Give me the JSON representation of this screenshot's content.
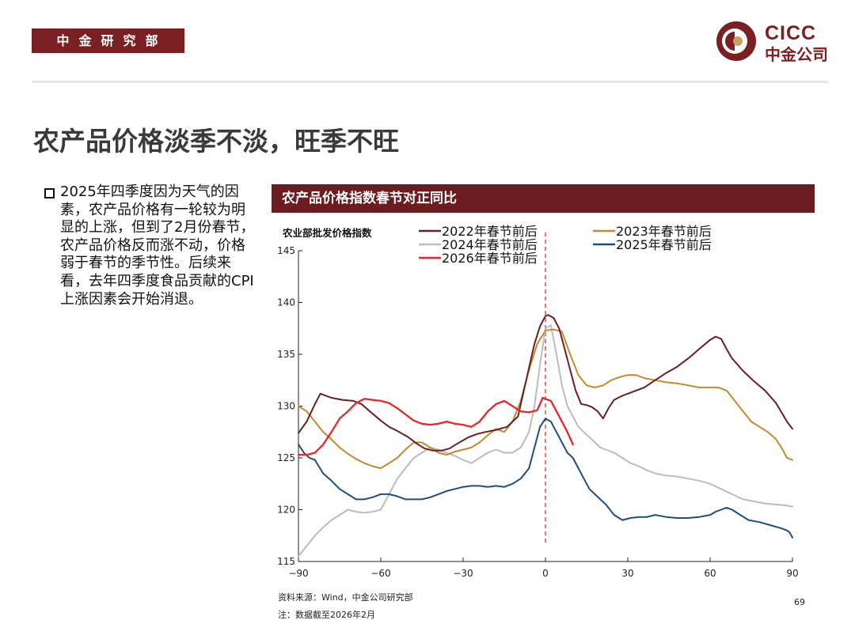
{
  "header": {
    "department": "中金研究部",
    "logo_en": "CICC",
    "logo_cn": "中金公司"
  },
  "page_title": "农产品价格淡季不淡，旺季不旺",
  "bullet_text": "2025年四季度因为天气的因素，农产品价格有一轮较为明显的上涨，但到了2月份春节，农产品价格反而涨不动，价格弱于春节的季节性。后续来看，去年四季度食品贡献的CPI上涨因素会开始消退。",
  "chart_title": "农产品价格指数春节对正同比",
  "footer": {
    "source": "资料来源：Wind，中金公司研究部",
    "note": "注：数据截至2026年2月",
    "page_number": "69"
  },
  "colors": {
    "brand": "#7a1f22",
    "s2022": "#6b1f22",
    "s2023": "#c48a2e",
    "s2024": "#bcbcbc",
    "s2025": "#1f4e79",
    "s2026": "#e8262b",
    "marker": "#e8262b"
  },
  "chart_data": {
    "type": "line",
    "ylabel": "农业部批发价格指数",
    "xlim": [
      -90,
      90
    ],
    "ylim": [
      115,
      145
    ],
    "xticks": [
      -90,
      -60,
      -30,
      0,
      30,
      60,
      90
    ],
    "xtick_labels": [
      "−90",
      "−60",
      "−30",
      "0",
      "30",
      "60",
      "90"
    ],
    "yticks": [
      115,
      120,
      125,
      130,
      135,
      140,
      145
    ],
    "vline": 0,
    "grid": false,
    "legend": "top",
    "series": [
      {
        "name": "2022年春节前后",
        "color": "#6b1f22",
        "x": [
          -90,
          -87,
          -84,
          -82,
          -78,
          -74,
          -70,
          -67,
          -64,
          -60,
          -57,
          -54,
          -50,
          -47,
          -44,
          -41,
          -38,
          -35,
          -32,
          -28,
          -25,
          -22,
          -18,
          -14,
          -10,
          -7,
          -4,
          -2,
          0,
          1,
          3,
          5,
          7,
          9,
          11,
          13,
          15,
          17,
          19,
          21,
          23,
          25,
          28,
          32,
          36,
          40,
          44,
          48,
          52,
          56,
          60,
          62,
          64,
          66,
          68,
          72,
          76,
          80,
          84,
          88,
          90
        ],
        "y": [
          127.4,
          128.5,
          130.2,
          131.2,
          130.8,
          130.6,
          130.5,
          130.2,
          129.5,
          128.6,
          128.0,
          127.6,
          127.0,
          126.4,
          125.9,
          125.7,
          125.7,
          125.9,
          126.4,
          127.0,
          127.3,
          127.5,
          127.7,
          128.0,
          129.0,
          132.5,
          136.0,
          137.7,
          138.7,
          138.8,
          138.5,
          137.5,
          135.5,
          133.5,
          131.5,
          130.2,
          130.1,
          129.9,
          129.5,
          128.8,
          129.8,
          130.6,
          131.0,
          131.4,
          131.8,
          132.5,
          133.2,
          133.8,
          134.6,
          135.5,
          136.4,
          136.7,
          136.5,
          135.5,
          134.6,
          133.4,
          132.4,
          131.5,
          130.3,
          128.5,
          127.8
        ]
      },
      {
        "name": "2023年春节前后",
        "color": "#c48a2e",
        "x": [
          -90,
          -87,
          -84,
          -81,
          -78,
          -75,
          -72,
          -69,
          -66,
          -63,
          -60,
          -57,
          -54,
          -51,
          -48,
          -45,
          -42,
          -39,
          -36,
          -33,
          -30,
          -27,
          -24,
          -21,
          -18,
          -15,
          -12,
          -9,
          -6,
          -3,
          0,
          3,
          6,
          9,
          12,
          15,
          18,
          21,
          24,
          27,
          30,
          33,
          36,
          40,
          44,
          48,
          52,
          56,
          60,
          63,
          66,
          69,
          72,
          75,
          78,
          81,
          84,
          86,
          88,
          90
        ],
        "y": [
          130.0,
          129.5,
          128.5,
          127.5,
          126.8,
          126.0,
          125.4,
          124.9,
          124.5,
          124.2,
          124.0,
          124.5,
          125.0,
          125.8,
          126.5,
          126.5,
          126.0,
          125.5,
          125.3,
          125.6,
          125.8,
          126.0,
          126.5,
          127.2,
          127.8,
          127.5,
          128.5,
          130.5,
          133.5,
          136.0,
          137.3,
          137.4,
          137.2,
          135.0,
          133.0,
          132.0,
          131.8,
          132.0,
          132.5,
          132.8,
          133.0,
          133.0,
          132.7,
          132.5,
          132.3,
          132.2,
          132.0,
          131.8,
          131.8,
          131.8,
          131.5,
          130.5,
          129.5,
          128.5,
          128.0,
          127.5,
          126.8,
          126.0,
          125.0,
          124.8
        ]
      },
      {
        "name": "2024年春节前后",
        "color": "#bcbcbc",
        "x": [
          -90,
          -87,
          -84,
          -81,
          -78,
          -75,
          -72,
          -69,
          -66,
          -63,
          -60,
          -57,
          -54,
          -51,
          -48,
          -45,
          -42,
          -39,
          -36,
          -33,
          -30,
          -27,
          -24,
          -21,
          -18,
          -15,
          -12,
          -9,
          -6,
          -4,
          -2,
          0,
          2,
          4,
          6,
          8,
          10,
          12,
          14,
          16,
          18,
          20,
          22,
          25,
          28,
          31,
          34,
          37,
          40,
          44,
          48,
          52,
          56,
          60,
          64,
          68,
          72,
          76,
          80,
          84,
          88,
          90
        ],
        "y": [
          115.5,
          116.5,
          117.5,
          118.3,
          119.0,
          119.5,
          120.0,
          119.8,
          119.7,
          119.8,
          120.0,
          121.5,
          123.0,
          124.0,
          125.0,
          125.5,
          126.0,
          125.8,
          125.5,
          125.2,
          124.8,
          124.5,
          125.0,
          125.5,
          125.8,
          125.5,
          125.5,
          126.0,
          127.5,
          130.0,
          134.0,
          137.5,
          137.8,
          135.0,
          132.0,
          130.0,
          129.0,
          128.0,
          127.5,
          127.0,
          126.5,
          126.0,
          125.8,
          125.5,
          125.0,
          124.5,
          124.2,
          123.8,
          123.5,
          123.3,
          123.2,
          123.0,
          122.8,
          122.5,
          122.0,
          121.5,
          121.0,
          120.8,
          120.6,
          120.5,
          120.4,
          120.3
        ]
      },
      {
        "name": "2025年春节前后",
        "color": "#1f4e79",
        "x": [
          -90,
          -88,
          -86,
          -84,
          -81,
          -78,
          -75,
          -72,
          -69,
          -66,
          -63,
          -60,
          -57,
          -54,
          -51,
          -48,
          -45,
          -42,
          -39,
          -36,
          -33,
          -30,
          -27,
          -24,
          -21,
          -18,
          -15,
          -12,
          -9,
          -6,
          -4,
          -2,
          0,
          2,
          4,
          6,
          8,
          10,
          12,
          14,
          16,
          18,
          20,
          22,
          25,
          28,
          31,
          34,
          37,
          40,
          44,
          48,
          52,
          56,
          60,
          62,
          64,
          66,
          68,
          71,
          74,
          78,
          82,
          86,
          88,
          89,
          90
        ],
        "y": [
          126.3,
          125.5,
          125.0,
          124.8,
          123.5,
          122.8,
          122.0,
          121.5,
          121.0,
          121.0,
          121.2,
          121.5,
          121.5,
          121.3,
          121.0,
          121.0,
          121.0,
          121.2,
          121.5,
          121.8,
          122.0,
          122.2,
          122.3,
          122.3,
          122.2,
          122.3,
          122.2,
          122.5,
          123.0,
          124.0,
          126.0,
          128.0,
          128.8,
          128.5,
          127.5,
          126.5,
          125.5,
          125.0,
          124.0,
          123.0,
          122.0,
          121.5,
          121.0,
          120.5,
          119.5,
          119.0,
          119.2,
          119.3,
          119.3,
          119.5,
          119.3,
          119.2,
          119.2,
          119.3,
          119.5,
          119.8,
          120.0,
          120.2,
          120.0,
          119.5,
          119.0,
          118.8,
          118.5,
          118.2,
          118.0,
          117.8,
          117.3
        ]
      },
      {
        "name": "2026年春节前后",
        "color": "#e8262b",
        "x": [
          -90,
          -87,
          -84,
          -81,
          -78,
          -75,
          -72,
          -69,
          -66,
          -63,
          -60,
          -57,
          -54,
          -51,
          -48,
          -45,
          -42,
          -39,
          -36,
          -33,
          -30,
          -27,
          -24,
          -21,
          -18,
          -15,
          -12,
          -9,
          -6,
          -3,
          -1,
          0,
          2,
          4,
          6,
          8,
          10
        ],
        "y": [
          125.3,
          125.3,
          125.5,
          126.3,
          127.5,
          128.8,
          129.5,
          130.3,
          130.7,
          130.6,
          130.5,
          130.3,
          129.8,
          129.2,
          128.6,
          128.3,
          128.2,
          128.3,
          128.5,
          128.3,
          128.2,
          128.0,
          128.5,
          129.5,
          130.2,
          130.5,
          130.0,
          129.5,
          129.4,
          129.6,
          130.8,
          130.7,
          130.5,
          129.5,
          128.5,
          127.5,
          126.3
        ]
      }
    ]
  }
}
